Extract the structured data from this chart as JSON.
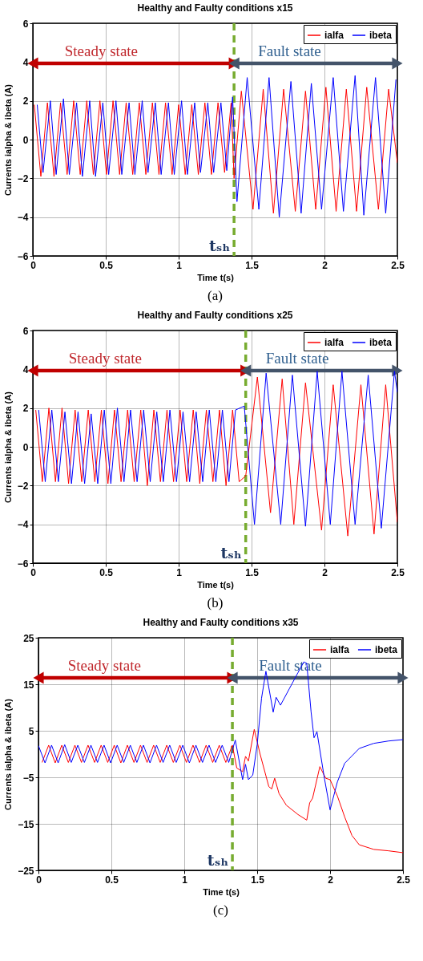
{
  "chart_data": [
    {
      "type": "line",
      "title": "Healthy and Faulty conditions x15",
      "xlabel": "Time t(s)",
      "ylabel": "Currents ialpha & ibeta (A)",
      "xlim": [
        0,
        2.5
      ],
      "xticks": [
        0,
        0.5,
        1,
        1.5,
        2,
        2.5
      ],
      "ylim": [
        -6,
        6
      ],
      "yticks": [
        -6,
        -4,
        -2,
        0,
        2,
        4,
        6
      ],
      "grid": true,
      "legend": "top right",
      "series": [
        {
          "name": "ialfa",
          "color": "#ff0000",
          "x": [
            0.01,
            0.055,
            0.1,
            0.145,
            0.19,
            0.235,
            0.28,
            0.325,
            0.37,
            0.415,
            0.46,
            0.505,
            0.55,
            0.595,
            0.64,
            0.685,
            0.73,
            0.775,
            0.82,
            0.865,
            0.91,
            0.955,
            1.0,
            1.045,
            1.09,
            1.135,
            1.18,
            1.225,
            1.27,
            1.315,
            1.36,
            1.38,
            1.43,
            1.51,
            1.58,
            1.65,
            1.72,
            1.8,
            1.87,
            1.94,
            2.01,
            2.08,
            2.15,
            2.22,
            2.29,
            2.37,
            2.44,
            2.5
          ],
          "values": [
            1.8,
            -1.9,
            1.9,
            -1.9,
            1.9,
            -1.8,
            2.0,
            -1.8,
            2.0,
            -1.8,
            2.0,
            -1.8,
            2.0,
            -1.8,
            1.9,
            -1.8,
            1.9,
            -1.8,
            1.9,
            -1.8,
            1.9,
            -1.8,
            1.8,
            -1.8,
            1.8,
            -1.8,
            1.9,
            -1.8,
            1.9,
            -1.7,
            1.9,
            -2.0,
            2.5,
            -3.6,
            2.6,
            -3.8,
            2.6,
            -3.7,
            2.5,
            -3.6,
            2.7,
            -3.7,
            2.6,
            -3.7,
            2.7,
            -3.6,
            2.6,
            -1.2
          ]
        },
        {
          "name": "ibeta",
          "color": "#0000ff",
          "x": [
            0.03,
            0.07,
            0.12,
            0.16,
            0.21,
            0.25,
            0.3,
            0.34,
            0.39,
            0.43,
            0.48,
            0.52,
            0.57,
            0.61,
            0.66,
            0.7,
            0.75,
            0.79,
            0.84,
            0.88,
            0.93,
            0.97,
            1.02,
            1.06,
            1.11,
            1.15,
            1.2,
            1.24,
            1.29,
            1.33,
            1.37,
            1.4,
            1.47,
            1.55,
            1.62,
            1.69,
            1.77,
            1.84,
            1.91,
            1.98,
            2.06,
            2.13,
            2.21,
            2.27,
            2.35,
            2.42,
            2.49
          ],
          "values": [
            1.8,
            -1.7,
            2.0,
            -1.8,
            2.1,
            -1.8,
            1.9,
            -1.9,
            2.0,
            -1.9,
            1.9,
            -1.8,
            2.0,
            -1.8,
            1.9,
            -1.8,
            2.0,
            -1.7,
            1.9,
            -1.8,
            1.9,
            -1.8,
            2.0,
            -1.8,
            1.9,
            -1.7,
            1.9,
            -1.7,
            1.9,
            -1.6,
            2.2,
            -3.2,
            3.2,
            -3.6,
            3.2,
            -4.0,
            3.0,
            -3.8,
            2.9,
            -3.6,
            3.2,
            -3.7,
            3.3,
            -3.9,
            3.2,
            -3.8,
            3.1
          ]
        }
      ],
      "ref_lines": [
        {
          "axis": "x",
          "value": 1.38,
          "label": "tₛₕ",
          "color": "#77ac30",
          "line_style": "dashed"
        }
      ],
      "annotations": [
        "Steady state",
        "Fault state",
        "(a)"
      ]
    },
    {
      "type": "line",
      "title": "Healthy and Faulty conditions x25",
      "xlabel": "Time t(s)",
      "ylabel": "Currents ialpha & ibeta (A)",
      "xlim": [
        0,
        2.5
      ],
      "xticks": [
        0,
        0.5,
        1,
        1.5,
        2,
        2.5
      ],
      "ylim": [
        -6,
        6
      ],
      "yticks": [
        -6,
        -4,
        -2,
        0,
        2,
        4,
        6
      ],
      "grid": true,
      "legend": "top right",
      "series": [
        {
          "name": "ialfa",
          "color": "#ff0000",
          "x": [
            0.02,
            0.065,
            0.11,
            0.155,
            0.2,
            0.245,
            0.29,
            0.335,
            0.38,
            0.425,
            0.47,
            0.515,
            0.56,
            0.605,
            0.65,
            0.695,
            0.74,
            0.785,
            0.83,
            0.875,
            0.92,
            0.965,
            1.01,
            1.055,
            1.1,
            1.145,
            1.19,
            1.235,
            1.28,
            1.325,
            1.37,
            1.415,
            1.46,
            1.54,
            1.63,
            1.71,
            1.79,
            1.87,
            1.98,
            2.06,
            2.16,
            2.25,
            2.34,
            2.42,
            2.5
          ],
          "values": [
            1.9,
            -1.8,
            2.0,
            -1.8,
            2.0,
            -1.9,
            1.9,
            -1.8,
            1.9,
            -1.8,
            1.9,
            -1.9,
            1.9,
            -1.8,
            1.9,
            -1.8,
            1.9,
            -2.0,
            1.9,
            -1.8,
            1.9,
            -1.8,
            1.9,
            -1.8,
            1.9,
            -1.9,
            1.9,
            -1.8,
            1.9,
            -2.0,
            1.9,
            -1.8,
            -1.5,
            3.6,
            -3.4,
            3.5,
            -4.0,
            3.3,
            -4.3,
            3.2,
            -4.6,
            3.2,
            -4.5,
            3.2,
            -3.9
          ]
        },
        {
          "name": "ibeta",
          "color": "#0000ff",
          "x": [
            0.04,
            0.085,
            0.13,
            0.175,
            0.22,
            0.265,
            0.31,
            0.355,
            0.4,
            0.445,
            0.49,
            0.535,
            0.58,
            0.625,
            0.67,
            0.715,
            0.76,
            0.805,
            0.85,
            0.895,
            0.94,
            0.985,
            1.03,
            1.075,
            1.12,
            1.165,
            1.21,
            1.255,
            1.3,
            1.345,
            1.39,
            1.45,
            1.52,
            1.6,
            1.7,
            1.78,
            1.87,
            1.95,
            2.04,
            2.12,
            2.21,
            2.3,
            2.39,
            2.48,
            2.5
          ],
          "values": [
            1.9,
            -1.8,
            1.9,
            -1.8,
            1.8,
            -1.9,
            1.8,
            -1.9,
            1.7,
            -1.9,
            1.9,
            -1.9,
            2.0,
            -1.8,
            1.9,
            -1.8,
            1.9,
            -1.8,
            1.8,
            -1.8,
            1.9,
            -1.8,
            1.8,
            -1.8,
            1.8,
            -1.8,
            1.9,
            -1.8,
            1.9,
            -1.8,
            1.9,
            2.1,
            -4.0,
            3.8,
            -4.0,
            3.7,
            -4.1,
            3.9,
            -4.0,
            3.9,
            -4.0,
            3.7,
            -4.2,
            3.9,
            2.8
          ]
        }
      ],
      "ref_lines": [
        {
          "axis": "x",
          "value": 1.46,
          "label": "tₛₕ",
          "color": "#77ac30",
          "line_style": "dashed"
        }
      ],
      "annotations": [
        "Steady state",
        "Fault state",
        "(b)"
      ]
    },
    {
      "type": "line",
      "title": "Healthy and Faulty conditions x35",
      "xlabel": "Time t(s)",
      "ylabel": "Currents ialpha & ibeta (A)",
      "xlim": [
        0,
        2.5
      ],
      "xticks": [
        0,
        0.5,
        1,
        1.5,
        2,
        2.5
      ],
      "ylim": [
        -25,
        25
      ],
      "yticks": [
        -25,
        -15,
        -5,
        5,
        15,
        25
      ],
      "grid": true,
      "legend": "top right",
      "series": [
        {
          "name": "ialfa",
          "color": "#ff0000",
          "x": [
            0.025,
            0.07,
            0.115,
            0.16,
            0.205,
            0.25,
            0.295,
            0.34,
            0.385,
            0.43,
            0.475,
            0.52,
            0.565,
            0.61,
            0.655,
            0.7,
            0.745,
            0.79,
            0.835,
            0.88,
            0.925,
            0.97,
            1.015,
            1.06,
            1.105,
            1.15,
            1.195,
            1.24,
            1.285,
            1.33,
            1.36,
            1.4,
            1.42,
            1.44,
            1.48,
            1.52,
            1.58,
            1.6,
            1.62,
            1.65,
            1.7,
            1.78,
            1.84,
            1.86,
            1.88,
            1.93,
            1.97,
            2.0,
            2.05,
            2.1,
            2.15,
            2.2,
            2.3,
            2.4,
            2.5
          ],
          "values": [
            -1.8,
            1.9,
            -1.9,
            1.9,
            -1.8,
            1.9,
            -1.8,
            1.9,
            -1.8,
            1.9,
            -1.8,
            1.9,
            -1.9,
            1.9,
            -1.8,
            1.9,
            -1.8,
            1.9,
            -1.8,
            1.9,
            -1.8,
            1.9,
            -1.8,
            1.9,
            -1.8,
            1.9,
            -1.8,
            1.9,
            -1.8,
            1.9,
            -3.0,
            -3.8,
            -0.5,
            -1.5,
            5.3,
            0,
            -7,
            -7.5,
            -5.2,
            -8.5,
            -11,
            -13,
            -14.2,
            -10.5,
            -9.5,
            -2.7,
            -5.2,
            -5.5,
            -9,
            -13.5,
            -17.5,
            -19.5,
            -20.5,
            -20.8,
            -21.2
          ]
        },
        {
          "name": "ibeta",
          "color": "#0000ff",
          "x": [
            0,
            0.045,
            0.09,
            0.135,
            0.18,
            0.225,
            0.27,
            0.315,
            0.36,
            0.405,
            0.45,
            0.495,
            0.54,
            0.585,
            0.63,
            0.675,
            0.72,
            0.765,
            0.81,
            0.855,
            0.9,
            0.945,
            0.99,
            1.035,
            1.08,
            1.125,
            1.17,
            1.215,
            1.26,
            1.305,
            1.35,
            1.4,
            1.42,
            1.44,
            1.47,
            1.5,
            1.53,
            1.56,
            1.61,
            1.63,
            1.66,
            1.72,
            1.78,
            1.82,
            1.84,
            1.87,
            1.89,
            1.91,
            1.96,
            2.0,
            2.05,
            2.1,
            2.2,
            2.3,
            2.4,
            2.5
          ],
          "values": [
            1.8,
            -1.9,
            1.9,
            -1.9,
            2.0,
            -1.8,
            1.9,
            -1.8,
            1.9,
            -1.8,
            1.9,
            -1.9,
            1.9,
            -1.8,
            1.9,
            -1.8,
            1.9,
            -1.9,
            1.9,
            -1.8,
            1.9,
            -1.8,
            1.9,
            -1.9,
            1.9,
            -1.8,
            1.9,
            -1.8,
            1.9,
            -1.8,
            3.0,
            -5.5,
            -2.2,
            -5.5,
            -4.5,
            2,
            12,
            17.8,
            9,
            12.2,
            10.5,
            14,
            17.5,
            19.8,
            19.5,
            9,
            3.5,
            4.8,
            -5,
            -12,
            -6,
            -2,
            1.2,
            2.3,
            2.8,
            3.1
          ]
        }
      ],
      "ref_lines": [
        {
          "axis": "x",
          "value": 1.33,
          "label": "tₛₕ",
          "color": "#77ac30",
          "line_style": "dashed"
        }
      ],
      "annotations": [
        "Steady state",
        "Fault state",
        "(c)"
      ]
    }
  ]
}
